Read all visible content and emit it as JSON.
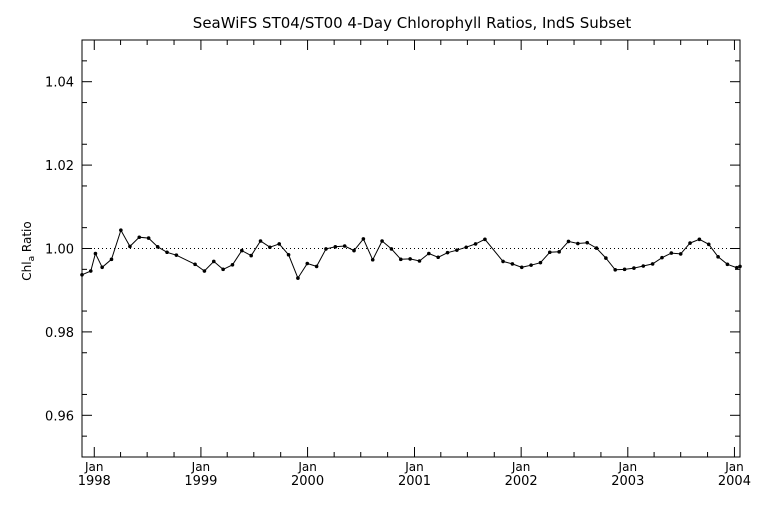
{
  "chart_data": {
    "type": "line",
    "title": "SeaWiFS ST04/ST00 4-Day Chlorophyll Ratios, IndS Subset",
    "ylabel": "Chl",
    "ylabel_sub": "a",
    "ylabel_tail": " Ratio",
    "xlabel": "",
    "xlim": [
      "1997-11-20",
      "2004-01-20"
    ],
    "ylim": [
      0.95,
      1.05
    ],
    "yticks": [
      0.96,
      0.98,
      1.0,
      1.02,
      1.04
    ],
    "ytick_labels": [
      "0.96",
      "0.98",
      "1.00",
      "1.02",
      "1.04"
    ],
    "xticks": [
      "1998-01-01",
      "1999-01-01",
      "2000-01-01",
      "2001-01-01",
      "2002-01-01",
      "2003-01-01",
      "2004-01-01"
    ],
    "xtick_labels_top": [
      "Jan",
      "Jan",
      "Jan",
      "Jan",
      "Jan",
      "Jan",
      "Jan"
    ],
    "xtick_labels_bottom": [
      "1998",
      "1999",
      "2000",
      "2001",
      "2002",
      "2003",
      "2004"
    ],
    "reference_line": {
      "y": 1.0,
      "style": "dotted"
    },
    "grid": false,
    "series": [
      {
        "x": [
          "1997-11-20",
          "1997-12-20",
          "1998-01-05",
          "1998-01-28",
          "1998-03-01",
          "1998-04-02",
          "1998-05-03",
          "1998-06-04",
          "1998-07-06",
          "1998-08-06",
          "1998-09-07",
          "1998-10-09",
          "1998-12-12",
          "1999-01-13",
          "1999-02-14",
          "1999-03-18",
          "1999-04-19",
          "1999-05-21",
          "1999-06-22",
          "1999-07-24",
          "1999-08-25",
          "1999-09-26",
          "1999-10-28",
          "1999-11-29",
          "1999-12-31",
          "2000-02-01",
          "2000-03-04",
          "2000-04-05",
          "2000-05-07",
          "2000-06-08",
          "2000-07-10",
          "2000-08-11",
          "2000-09-12",
          "2000-10-14",
          "2000-11-15",
          "2000-12-17",
          "2001-01-18",
          "2001-02-19",
          "2001-03-23",
          "2001-04-24",
          "2001-05-26",
          "2001-06-27",
          "2001-07-29",
          "2001-08-30",
          "2001-10-31",
          "2001-12-02",
          "2002-01-03",
          "2002-02-04",
          "2002-03-08",
          "2002-04-09",
          "2002-05-11",
          "2002-06-12",
          "2002-07-14",
          "2002-08-15",
          "2002-09-16",
          "2002-10-18",
          "2002-11-19",
          "2002-12-21",
          "2003-01-22",
          "2003-02-23",
          "2003-03-27",
          "2003-04-28",
          "2003-05-30",
          "2003-07-01",
          "2003-08-02",
          "2003-09-03",
          "2003-10-05",
          "2003-11-06",
          "2003-12-08",
          "2004-01-09",
          "2004-01-20"
        ],
        "y": [
          0.9937,
          0.9946,
          0.9988,
          0.9955,
          0.9974,
          1.0044,
          1.0005,
          1.0027,
          1.0025,
          1.0004,
          0.9991,
          0.9984,
          0.9962,
          0.9946,
          0.9969,
          0.995,
          0.9961,
          0.9995,
          0.9983,
          1.0018,
          1.0003,
          1.0011,
          0.9985,
          0.9929,
          0.9964,
          0.9957,
          0.9999,
          1.0004,
          1.0006,
          0.9995,
          1.0023,
          0.9973,
          1.0018,
          0.9999,
          0.9974,
          0.9975,
          0.997,
          0.9988,
          0.9979,
          0.999,
          0.9996,
          1.0003,
          1.0011,
          1.0022,
          0.9969,
          0.9963,
          0.9955,
          0.996,
          0.9966,
          0.9991,
          0.9992,
          1.0017,
          1.0012,
          1.0014,
          1.0001,
          0.9977,
          0.9949,
          0.995,
          0.9953,
          0.9958,
          0.9963,
          0.9978,
          0.9989,
          0.9987,
          1.0013,
          1.0022,
          1.001,
          0.998,
          0.9962,
          0.9954,
          0.9957
        ]
      }
    ]
  }
}
